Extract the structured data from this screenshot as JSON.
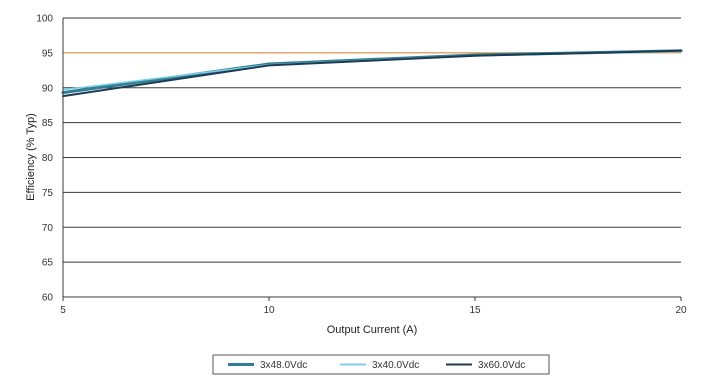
{
  "chart_data": {
    "type": "line",
    "title": "",
    "xlabel": "Output Current (A)",
    "ylabel": "Efficiency (% Typ)",
    "x": [
      5,
      10,
      15,
      20
    ],
    "xticks": [
      5,
      10,
      15,
      20
    ],
    "xlim": [
      5,
      20
    ],
    "yticks": [
      60,
      65,
      70,
      75,
      80,
      85,
      90,
      95,
      100
    ],
    "ylim": [
      60,
      100
    ],
    "grid": true,
    "legend_position": "bottom",
    "reference_line": {
      "y": 95,
      "color": "#e8a25a"
    },
    "series": [
      {
        "name": "3x48.0Vdc",
        "values": [
          89.3,
          93.4,
          94.7,
          95.3
        ],
        "color": "#2f7f94",
        "width": 3
      },
      {
        "name": "3x40.0Vdc",
        "values": [
          89.7,
          93.3,
          94.6,
          95.2
        ],
        "color": "#7fd0e6",
        "width": 1.5
      },
      {
        "name": "3x60.0Vdc",
        "values": [
          88.8,
          93.2,
          94.6,
          95.3
        ],
        "color": "#1f3b52",
        "width": 2
      }
    ]
  }
}
